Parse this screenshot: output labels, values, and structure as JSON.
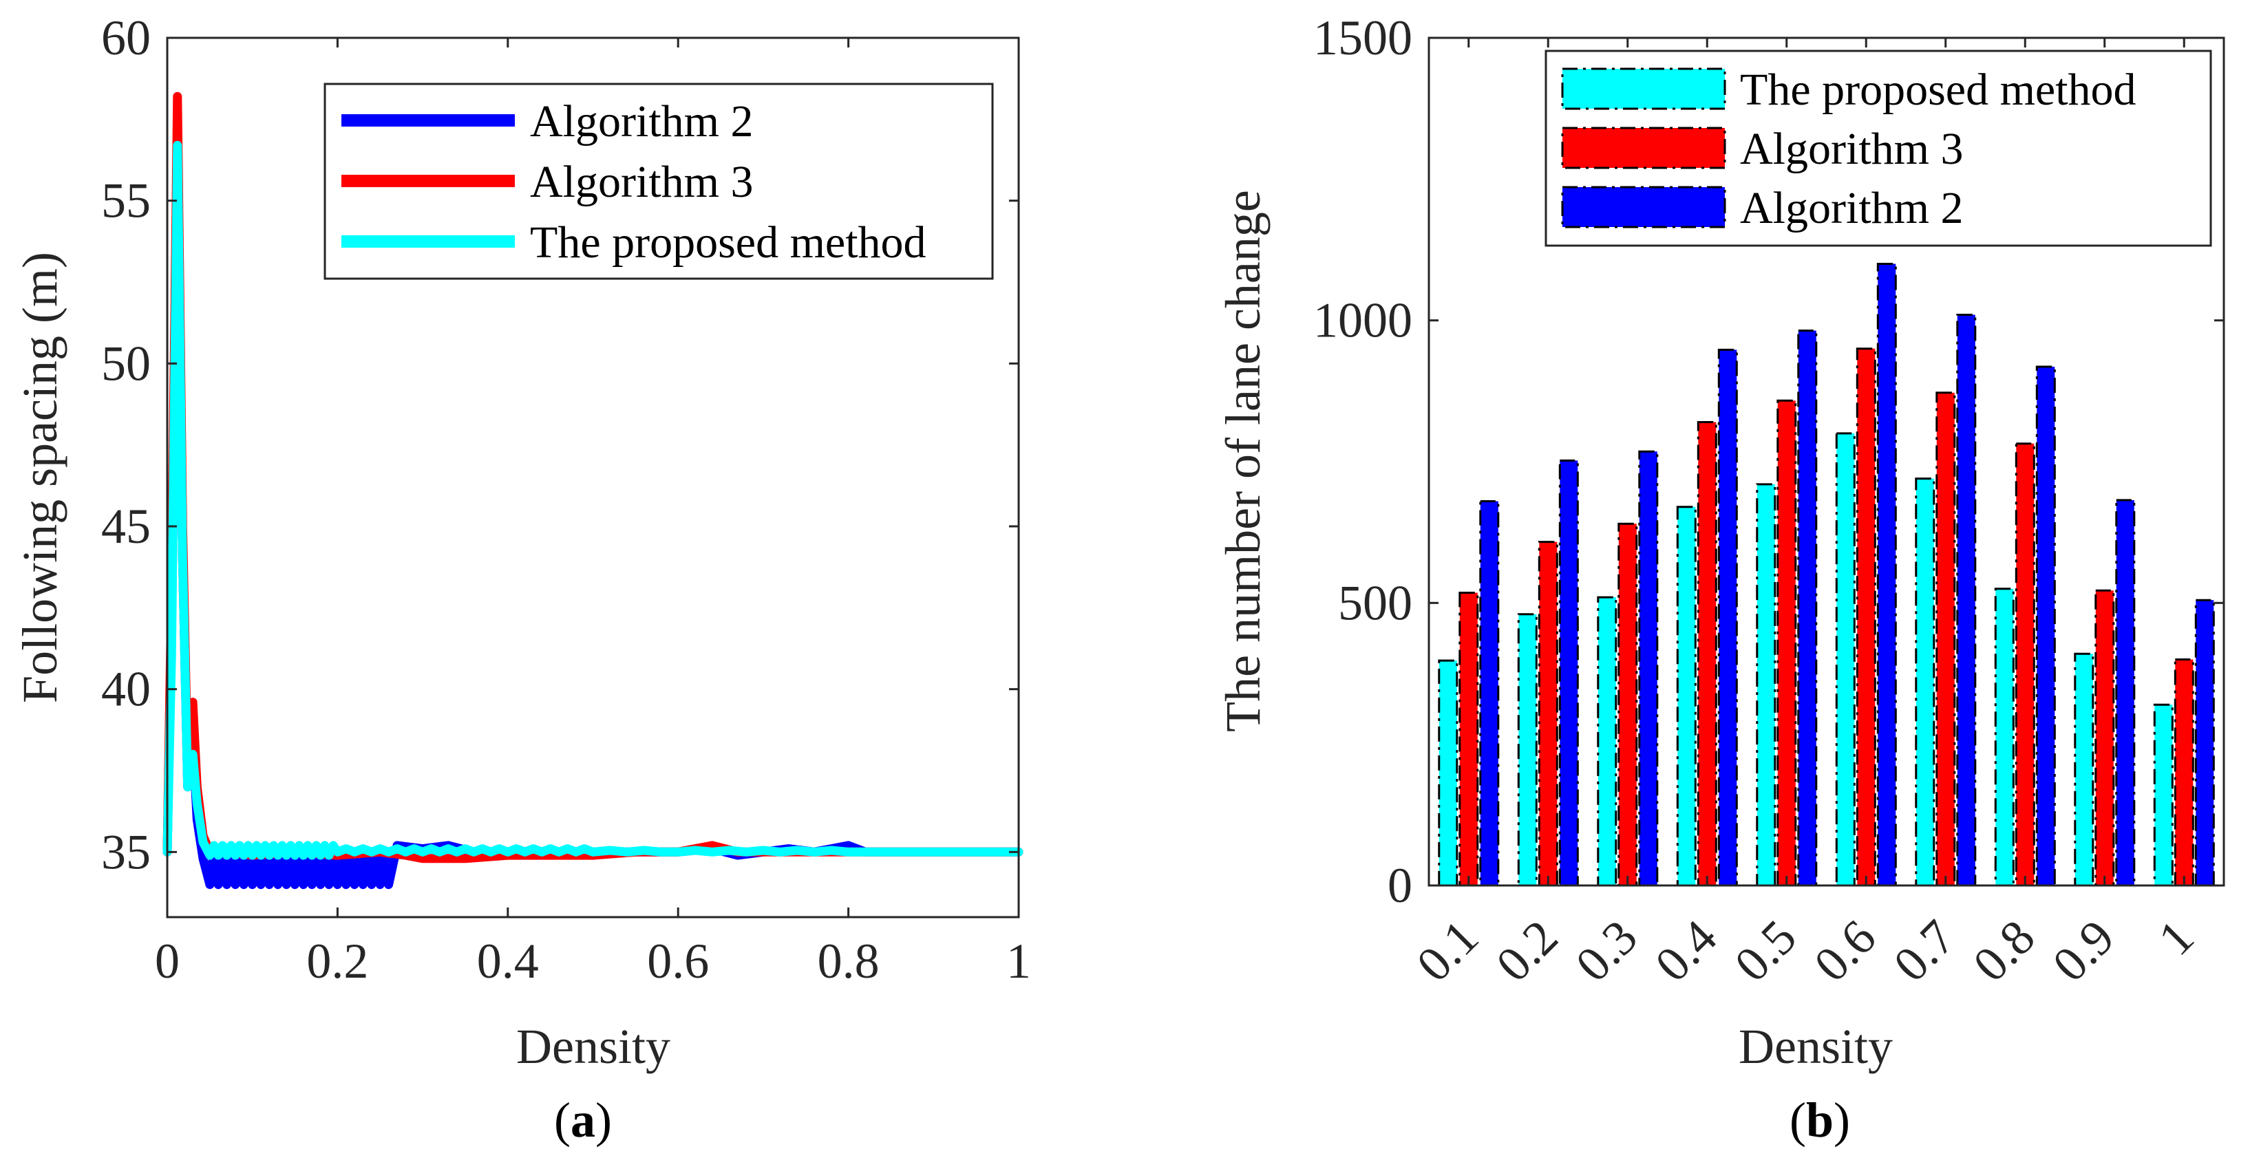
{
  "colors": {
    "algorithm2": "#0000ff",
    "algorithm3": "#ff0000",
    "proposed": "#00ffff"
  },
  "panel_a": {
    "caption_open": "(",
    "caption_letter": "a",
    "caption_close": ")"
  },
  "panel_b": {
    "caption_open": "(",
    "caption_letter": "b",
    "caption_close": ")"
  },
  "chart_data": [
    {
      "type": "line",
      "xlabel": "Density",
      "ylabel": "Following spacing (m)",
      "xlim": [
        0,
        1
      ],
      "ylim": [
        33,
        60
      ],
      "xticks": [
        0,
        0.2,
        0.4,
        0.6,
        0.8,
        1
      ],
      "xtick_labels": [
        "0",
        "0.2",
        "0.4",
        "0.6",
        "0.8",
        "1"
      ],
      "yticks": [
        35,
        40,
        45,
        50,
        55,
        60
      ],
      "ytick_labels": [
        "35",
        "40",
        "45",
        "50",
        "55",
        "60"
      ],
      "legend": [
        "Algorithm 2",
        "Algorithm 3",
        "The proposed method"
      ],
      "legend_position": "top-right",
      "series": [
        {
          "name": "Algorithm 2",
          "color": "#0000ff",
          "x": [
            0,
            0.005,
            0.012,
            0.018,
            0.024,
            0.03,
            0.035,
            0.042,
            0.05,
            0.055,
            0.06,
            0.065,
            0.07,
            0.075,
            0.08,
            0.085,
            0.09,
            0.095,
            0.1,
            0.105,
            0.11,
            0.115,
            0.12,
            0.125,
            0.13,
            0.135,
            0.14,
            0.145,
            0.15,
            0.155,
            0.16,
            0.165,
            0.17,
            0.175,
            0.18,
            0.185,
            0.19,
            0.195,
            0.2,
            0.205,
            0.21,
            0.215,
            0.22,
            0.225,
            0.23,
            0.235,
            0.24,
            0.245,
            0.25,
            0.255,
            0.26,
            0.27,
            0.3,
            0.33,
            0.36,
            0.4,
            0.45,
            0.5,
            0.55,
            0.6,
            0.64,
            0.67,
            0.7,
            0.73,
            0.76,
            0.78,
            0.8,
            0.82,
            0.85,
            0.88,
            0.9,
            0.95,
            1.0
          ],
          "y": [
            35,
            42,
            56,
            44,
            37,
            38.5,
            36,
            34.8,
            34,
            35,
            34,
            35,
            34,
            35,
            34,
            35,
            34,
            35,
            34,
            35,
            34,
            35,
            34,
            35,
            34,
            35,
            34,
            35,
            34,
            35,
            34,
            35,
            34,
            35,
            34,
            35,
            34,
            35,
            34,
            35,
            34,
            35,
            34,
            35,
            34,
            35,
            34,
            35,
            34,
            35,
            34,
            35.2,
            35.1,
            35.2,
            35.0,
            35.0,
            35.0,
            35.0,
            35.0,
            35.0,
            35.1,
            34.9,
            35.0,
            35.1,
            35.0,
            35.1,
            35.2,
            35.0,
            35.0,
            35.0,
            35.0,
            35.0,
            35.0
          ]
        },
        {
          "name": "Algorithm 3",
          "color": "#ff0000",
          "x": [
            0,
            0.005,
            0.012,
            0.018,
            0.024,
            0.03,
            0.035,
            0.042,
            0.05,
            0.07,
            0.1,
            0.15,
            0.2,
            0.25,
            0.28,
            0.3,
            0.35,
            0.4,
            0.45,
            0.5,
            0.55,
            0.6,
            0.64,
            0.67,
            0.7,
            0.75,
            0.8,
            0.85,
            0.9,
            0.95,
            1.0
          ],
          "y": [
            35,
            43,
            58.2,
            45,
            37.5,
            39.6,
            37,
            35.5,
            35.0,
            35.0,
            34.9,
            35.0,
            34.9,
            35.0,
            34.9,
            34.8,
            34.8,
            34.9,
            34.9,
            34.9,
            35.0,
            35.0,
            35.2,
            35.0,
            35.0,
            35.0,
            35.0,
            35.0,
            35.0,
            35.0,
            35.0
          ]
        },
        {
          "name": "The proposed method",
          "color": "#00ffff",
          "x": [
            0,
            0.005,
            0.012,
            0.018,
            0.024,
            0.03,
            0.035,
            0.042,
            0.05,
            0.055,
            0.06,
            0.065,
            0.07,
            0.075,
            0.08,
            0.085,
            0.09,
            0.095,
            0.1,
            0.105,
            0.11,
            0.115,
            0.12,
            0.125,
            0.13,
            0.135,
            0.14,
            0.145,
            0.15,
            0.155,
            0.16,
            0.165,
            0.17,
            0.175,
            0.18,
            0.185,
            0.19,
            0.195,
            0.2,
            0.21,
            0.22,
            0.23,
            0.24,
            0.25,
            0.26,
            0.27,
            0.28,
            0.29,
            0.3,
            0.31,
            0.32,
            0.33,
            0.34,
            0.35,
            0.36,
            0.37,
            0.38,
            0.39,
            0.4,
            0.41,
            0.42,
            0.43,
            0.44,
            0.45,
            0.46,
            0.47,
            0.48,
            0.49,
            0.5,
            0.52,
            0.54,
            0.56,
            0.58,
            0.6,
            0.62,
            0.64,
            0.66,
            0.68,
            0.7,
            0.72,
            0.74,
            0.76,
            0.78,
            0.8,
            0.85,
            0.9,
            0.95,
            1.0
          ],
          "y": [
            35,
            41,
            56.7,
            44,
            37,
            38,
            36.5,
            35.3,
            34.9,
            35.2,
            34.9,
            35.2,
            34.9,
            35.2,
            34.9,
            35.2,
            34.9,
            35.2,
            34.9,
            35.2,
            34.9,
            35.2,
            34.9,
            35.2,
            34.9,
            35.2,
            34.9,
            35.2,
            34.9,
            35.2,
            34.9,
            35.2,
            34.9,
            35.2,
            34.9,
            35.2,
            34.9,
            35.2,
            35.0,
            35.1,
            35.0,
            35.1,
            35.0,
            35.1,
            35.0,
            35.1,
            35.0,
            35.1,
            35.0,
            35.1,
            35.0,
            35.1,
            35.0,
            35.1,
            35.0,
            35.1,
            35.0,
            35.1,
            35.0,
            35.1,
            35.0,
            35.1,
            35.0,
            35.1,
            35.0,
            35.1,
            35.0,
            35.1,
            35.0,
            35.05,
            35.0,
            35.05,
            35.0,
            35.0,
            35.05,
            35.0,
            35.05,
            35.0,
            35.05,
            35.0,
            35.05,
            35.0,
            35.05,
            35.0,
            35.0,
            35.0,
            35.0,
            35.0
          ]
        }
      ]
    },
    {
      "type": "bar",
      "xlabel": "Density",
      "ylabel": "The number of lane change",
      "ylim": [
        0,
        1500
      ],
      "yticks": [
        0,
        500,
        1000,
        1500
      ],
      "ytick_labels": [
        "0",
        "500",
        "1000",
        "1500"
      ],
      "categories": [
        "0.1",
        "0.2",
        "0.3",
        "0.4",
        "0.5",
        "0.6",
        "0.7",
        "0.8",
        "0.9",
        "1"
      ],
      "legend": [
        "The proposed method",
        "Algorithm 3",
        "Algorithm 2"
      ],
      "legend_position": "top-right",
      "series": [
        {
          "name": "The proposed method",
          "color": "#00ffff",
          "values": [
            398,
            480,
            510,
            670,
            710,
            800,
            720,
            525,
            410,
            320
          ]
        },
        {
          "name": "Algorithm 3",
          "color": "#ff0000",
          "values": [
            518,
            608,
            640,
            820,
            858,
            950,
            872,
            782,
            522,
            400
          ]
        },
        {
          "name": "Algorithm 2",
          "color": "#0000ff",
          "values": [
            680,
            752,
            768,
            948,
            982,
            1100,
            1010,
            918,
            682,
            505
          ]
        }
      ]
    }
  ]
}
